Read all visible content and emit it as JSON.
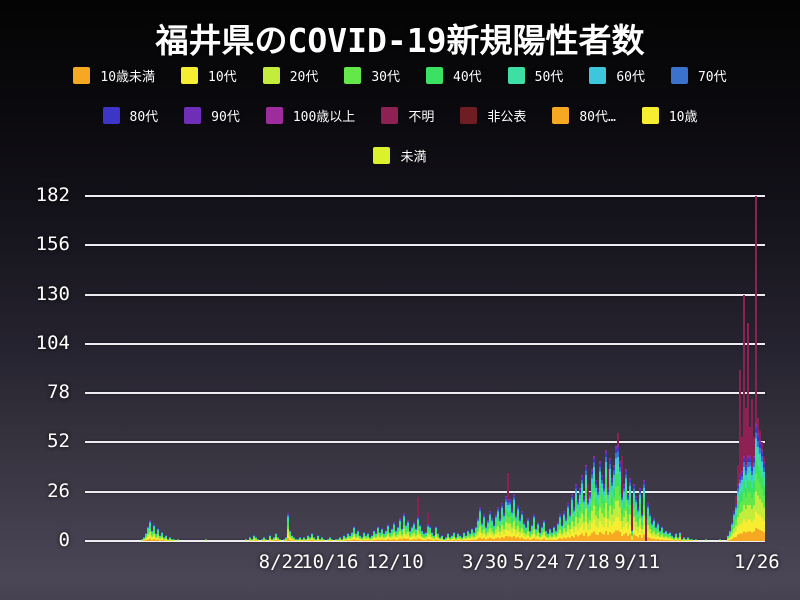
{
  "title": "福井県のCOVID-19新規陽性者数",
  "legend": {
    "rows": [
      [
        {
          "label": "10歳未満",
          "color": "#f7a823"
        },
        {
          "label": "10代",
          "color": "#f8ee31"
        },
        {
          "label": "20代",
          "color": "#c3ec3c"
        },
        {
          "label": "30代",
          "color": "#64e74a"
        },
        {
          "label": "40代",
          "color": "#3be163"
        },
        {
          "label": "50代",
          "color": "#3ddfa4"
        },
        {
          "label": "60代",
          "color": "#3ec6dc"
        },
        {
          "label": "70代",
          "color": "#3b72ce"
        }
      ],
      [
        {
          "label": "80代",
          "color": "#3c35c6"
        },
        {
          "label": "90代",
          "color": "#6e2eb7"
        },
        {
          "label": "100歳以上",
          "color": "#9d2c9c"
        },
        {
          "label": "不明",
          "color": "#8e2154"
        },
        {
          "label": "非公表",
          "color": "#6e1e22"
        },
        {
          "label": "80代…",
          "color": "#f7a823"
        },
        {
          "label": "10歳",
          "color": "#f8ee31"
        }
      ],
      [
        {
          "label": "未満",
          "color": "#d9f22c"
        }
      ]
    ]
  },
  "colors": {
    "grid": "#ececf2",
    "text": "#ffffff",
    "unknown": "#8e2154"
  },
  "chart_data": {
    "type": "bar",
    "stacked": true,
    "title": "福井県のCOVID-19新規陽性者数",
    "xlabel": "",
    "ylabel": "",
    "ylim": [
      0,
      182
    ],
    "grid": "horizontal",
    "legend_position": "top",
    "y_axis": {
      "ticks": [
        0,
        26,
        52,
        78,
        104,
        130,
        156,
        182
      ]
    },
    "x_axis": {
      "ticks": [
        {
          "label": "8/22",
          "pos": 0.289
        },
        {
          "label": "10/16",
          "pos": 0.36
        },
        {
          "label": "12/10",
          "pos": 0.456
        },
        {
          "label": "3/30",
          "pos": 0.588
        },
        {
          "label": "5/24",
          "pos": 0.663
        },
        {
          "label": "7/18",
          "pos": 0.738
        },
        {
          "label": "9/11",
          "pos": 0.812
        },
        {
          "label": "1/26",
          "pos": 0.988
        }
      ]
    },
    "age_groups": [
      {
        "name": "10歳未満",
        "color": "#f7a823",
        "fraction": 0.11
      },
      {
        "name": "10代",
        "color": "#f8ee31",
        "fraction": 0.14
      },
      {
        "name": "20代",
        "color": "#c3ec3c",
        "fraction": 0.17
      },
      {
        "name": "30代",
        "color": "#64e74a",
        "fraction": 0.15
      },
      {
        "name": "40代",
        "color": "#3be163",
        "fraction": 0.13
      },
      {
        "name": "50代",
        "color": "#3ddfa4",
        "fraction": 0.1
      },
      {
        "name": "60代",
        "color": "#3ec6dc",
        "fraction": 0.07
      },
      {
        "name": "70代",
        "color": "#3b72ce",
        "fraction": 0.055
      },
      {
        "name": "80代",
        "color": "#3c35c6",
        "fraction": 0.035
      },
      {
        "name": "90代",
        "color": "#6e2eb7",
        "fraction": 0.025
      },
      {
        "name": "100歳以上",
        "color": "#9d2c9c",
        "fraction": 0.015
      }
    ],
    "unknown_group": {
      "name": "不明",
      "color": "#8e2154"
    },
    "bin_days": 2,
    "totals": [
      0,
      0,
      0,
      0,
      0,
      0,
      0,
      0,
      0,
      0,
      0,
      0,
      0,
      0,
      0,
      0,
      0,
      0,
      0,
      0,
      0,
      0,
      0,
      0,
      0,
      0,
      0,
      0,
      1,
      2,
      4,
      8,
      11,
      6,
      9,
      4,
      7,
      3,
      5,
      2,
      3,
      1,
      2,
      1,
      1,
      0,
      1,
      0,
      0,
      0,
      0,
      0,
      0,
      0,
      0,
      0,
      0,
      0,
      0,
      0,
      1,
      0,
      0,
      0,
      0,
      0,
      0,
      0,
      0,
      0,
      0,
      0,
      0,
      0,
      0,
      0,
      0,
      0,
      0,
      0,
      1,
      0,
      2,
      1,
      3,
      2,
      1,
      0,
      1,
      2,
      1,
      0,
      3,
      1,
      2,
      4,
      2,
      1,
      0,
      1,
      2,
      15,
      6,
      3,
      2,
      1,
      1,
      2,
      1,
      2,
      1,
      3,
      2,
      4,
      2,
      1,
      3,
      1,
      2,
      1,
      0,
      1,
      2,
      1,
      0,
      1,
      1,
      2,
      1,
      3,
      2,
      4,
      3,
      5,
      8,
      4,
      6,
      3,
      2,
      5,
      3,
      4,
      2,
      3,
      6,
      4,
      8,
      5,
      7,
      4,
      6,
      9,
      5,
      7,
      10,
      6,
      8,
      12,
      7,
      15,
      9,
      11,
      6,
      8,
      10,
      7,
      23,
      9,
      6,
      4,
      5,
      15,
      8,
      5,
      3,
      8,
      4,
      2,
      3,
      1,
      2,
      4,
      2,
      3,
      5,
      2,
      4,
      3,
      2,
      5,
      3,
      6,
      4,
      7,
      5,
      8,
      12,
      18,
      10,
      14,
      8,
      11,
      16,
      12,
      9,
      14,
      18,
      12,
      20,
      15,
      24,
      36,
      22,
      17,
      25,
      14,
      19,
      12,
      16,
      10,
      8,
      12,
      6,
      9,
      14,
      7,
      10,
      5,
      8,
      11,
      6,
      4,
      7,
      5,
      8,
      6,
      10,
      14,
      9,
      16,
      12,
      20,
      15,
      25,
      18,
      30,
      22,
      28,
      35,
      24,
      40,
      30,
      26,
      38,
      45,
      32,
      28,
      42,
      35,
      30,
      48,
      38,
      44,
      33,
      40,
      50,
      57,
      42,
      45,
      30,
      38,
      25,
      33,
      20,
      30,
      24,
      18,
      28,
      15,
      32,
      12,
      20,
      15,
      10,
      12,
      8,
      10,
      6,
      8,
      5,
      6,
      4,
      5,
      3,
      2,
      4,
      2,
      5,
      4,
      2,
      1,
      2,
      1,
      1,
      0,
      1,
      0,
      0,
      0,
      0,
      1,
      0,
      0,
      0,
      0,
      0,
      0,
      1,
      0,
      0,
      0,
      3,
      6,
      10,
      16,
      24,
      40,
      90,
      55,
      130,
      70,
      115,
      60,
      75,
      55,
      182,
      65,
      58,
      52,
      45
    ],
    "unknown_tops": {
      "166": 10,
      "171": 6,
      "211": 14,
      "251": 8,
      "261": 10,
      "266": 6,
      "268": 20,
      "273": 14,
      "280": 16,
      "298": 3,
      "325": 4,
      "326": 10,
      "327": 55,
      "328": 18,
      "329": 85,
      "330": 30,
      "331": 70,
      "332": 15,
      "333": 35,
      "334": 10,
      "335": 120,
      "336": 8,
      "337": 5,
      "338": 4,
      "339": 3
    }
  }
}
